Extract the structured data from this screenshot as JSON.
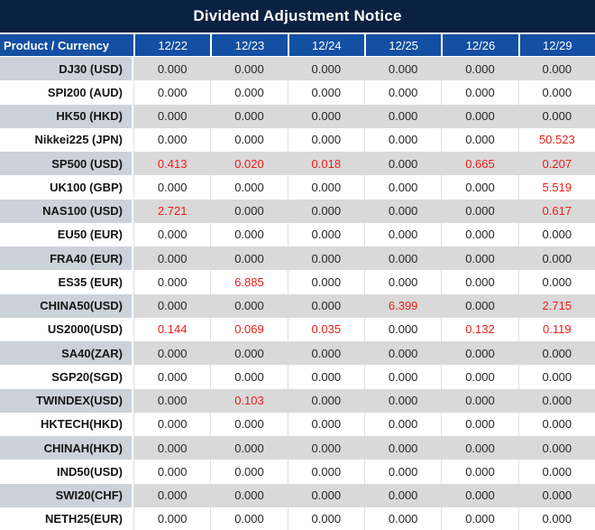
{
  "title": "Dividend Adjustment Notice",
  "colors": {
    "title_bg": "#0b2142",
    "header_bg": "#134fa2",
    "row_stripe_values": "#d9d9d9",
    "row_stripe_product": "#ccd2d9",
    "negative_highlight_red": "#ee1c17"
  },
  "table": {
    "product_header": "Product / Currency",
    "date_columns": [
      "12/22",
      "12/23",
      "12/24",
      "12/25",
      "12/26",
      "12/29"
    ],
    "rows": [
      {
        "product": "DJ30 (USD)",
        "values": [
          {
            "v": "0.000"
          },
          {
            "v": "0.000"
          },
          {
            "v": "0.000"
          },
          {
            "v": "0.000"
          },
          {
            "v": "0.000"
          },
          {
            "v": "0.000"
          }
        ]
      },
      {
        "product": "SPI200 (AUD)",
        "values": [
          {
            "v": "0.000"
          },
          {
            "v": "0.000"
          },
          {
            "v": "0.000"
          },
          {
            "v": "0.000"
          },
          {
            "v": "0.000"
          },
          {
            "v": "0.000"
          }
        ]
      },
      {
        "product": "HK50 (HKD)",
        "values": [
          {
            "v": "0.000"
          },
          {
            "v": "0.000"
          },
          {
            "v": "0.000"
          },
          {
            "v": "0.000"
          },
          {
            "v": "0.000"
          },
          {
            "v": "0.000"
          }
        ]
      },
      {
        "product": "Nikkei225 (JPN)",
        "values": [
          {
            "v": "0.000"
          },
          {
            "v": "0.000"
          },
          {
            "v": "0.000"
          },
          {
            "v": "0.000"
          },
          {
            "v": "0.000"
          },
          {
            "v": "50.523",
            "red": true
          }
        ]
      },
      {
        "product": "SP500 (USD)",
        "values": [
          {
            "v": "0.413",
            "red": true
          },
          {
            "v": "0.020",
            "red": true
          },
          {
            "v": "0.018",
            "red": true
          },
          {
            "v": "0.000"
          },
          {
            "v": "0.665",
            "red": true
          },
          {
            "v": "0.207",
            "red": true
          }
        ]
      },
      {
        "product": "UK100 (GBP)",
        "values": [
          {
            "v": "0.000"
          },
          {
            "v": "0.000"
          },
          {
            "v": "0.000"
          },
          {
            "v": "0.000"
          },
          {
            "v": "0.000"
          },
          {
            "v": "5.519",
            "red": true
          }
        ]
      },
      {
        "product": "NAS100 (USD)",
        "values": [
          {
            "v": "2.721",
            "red": true
          },
          {
            "v": "0.000"
          },
          {
            "v": "0.000"
          },
          {
            "v": "0.000"
          },
          {
            "v": "0.000"
          },
          {
            "v": "0.617",
            "red": true
          }
        ]
      },
      {
        "product": "EU50 (EUR)",
        "values": [
          {
            "v": "0.000"
          },
          {
            "v": "0.000"
          },
          {
            "v": "0.000"
          },
          {
            "v": "0.000"
          },
          {
            "v": "0.000"
          },
          {
            "v": "0.000"
          }
        ]
      },
      {
        "product": "FRA40 (EUR)",
        "values": [
          {
            "v": "0.000"
          },
          {
            "v": "0.000"
          },
          {
            "v": "0.000"
          },
          {
            "v": "0.000"
          },
          {
            "v": "0.000"
          },
          {
            "v": "0.000"
          }
        ]
      },
      {
        "product": "ES35 (EUR)",
        "values": [
          {
            "v": "0.000"
          },
          {
            "v": "6.885",
            "red": true
          },
          {
            "v": "0.000"
          },
          {
            "v": "0.000"
          },
          {
            "v": "0.000"
          },
          {
            "v": "0.000"
          }
        ]
      },
      {
        "product": "CHINA50(USD)",
        "values": [
          {
            "v": "0.000"
          },
          {
            "v": "0.000"
          },
          {
            "v": "0.000"
          },
          {
            "v": "6.399",
            "red": true
          },
          {
            "v": "0.000"
          },
          {
            "v": "2.715",
            "red": true
          }
        ]
      },
      {
        "product": "US2000(USD)",
        "values": [
          {
            "v": "0.144",
            "red": true
          },
          {
            "v": "0.069",
            "red": true
          },
          {
            "v": "0.035",
            "red": true
          },
          {
            "v": "0.000"
          },
          {
            "v": "0.132",
            "red": true
          },
          {
            "v": "0.119",
            "red": true
          }
        ]
      },
      {
        "product": "SA40(ZAR)",
        "values": [
          {
            "v": "0.000"
          },
          {
            "v": "0.000"
          },
          {
            "v": "0.000"
          },
          {
            "v": "0.000"
          },
          {
            "v": "0.000"
          },
          {
            "v": "0.000"
          }
        ]
      },
      {
        "product": "SGP20(SGD)",
        "values": [
          {
            "v": "0.000"
          },
          {
            "v": "0.000"
          },
          {
            "v": "0.000"
          },
          {
            "v": "0.000"
          },
          {
            "v": "0.000"
          },
          {
            "v": "0.000"
          }
        ]
      },
      {
        "product": "TWINDEX(USD)",
        "values": [
          {
            "v": "0.000"
          },
          {
            "v": "0.103",
            "red": true
          },
          {
            "v": "0.000"
          },
          {
            "v": "0.000"
          },
          {
            "v": "0.000"
          },
          {
            "v": "0.000"
          }
        ]
      },
      {
        "product": "HKTECH(HKD)",
        "values": [
          {
            "v": "0.000"
          },
          {
            "v": "0.000"
          },
          {
            "v": "0.000"
          },
          {
            "v": "0.000"
          },
          {
            "v": "0.000"
          },
          {
            "v": "0.000"
          }
        ]
      },
      {
        "product": "CHINAH(HKD)",
        "values": [
          {
            "v": "0.000"
          },
          {
            "v": "0.000"
          },
          {
            "v": "0.000"
          },
          {
            "v": "0.000"
          },
          {
            "v": "0.000"
          },
          {
            "v": "0.000"
          }
        ]
      },
      {
        "product": "IND50(USD)",
        "values": [
          {
            "v": "0.000"
          },
          {
            "v": "0.000"
          },
          {
            "v": "0.000"
          },
          {
            "v": "0.000"
          },
          {
            "v": "0.000"
          },
          {
            "v": "0.000"
          }
        ]
      },
      {
        "product": "SWI20(CHF)",
        "values": [
          {
            "v": "0.000"
          },
          {
            "v": "0.000"
          },
          {
            "v": "0.000"
          },
          {
            "v": "0.000"
          },
          {
            "v": "0.000"
          },
          {
            "v": "0.000"
          }
        ]
      },
      {
        "product": "NETH25(EUR)",
        "values": [
          {
            "v": "0.000"
          },
          {
            "v": "0.000"
          },
          {
            "v": "0.000"
          },
          {
            "v": "0.000"
          },
          {
            "v": "0.000"
          },
          {
            "v": "0.000"
          }
        ]
      }
    ]
  }
}
